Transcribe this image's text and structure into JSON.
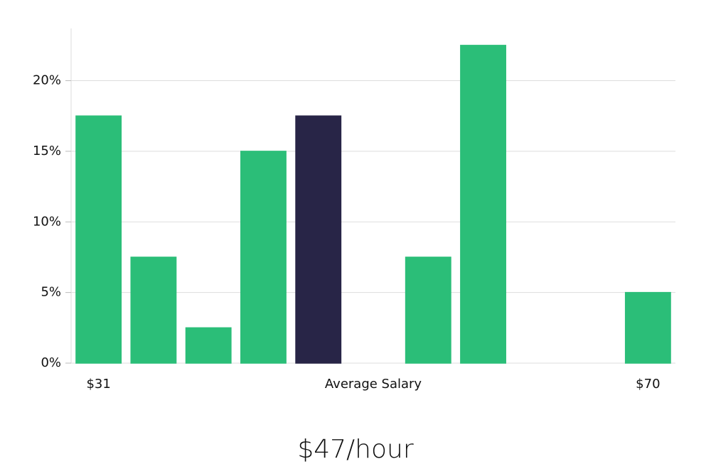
{
  "chart_data": {
    "type": "bar",
    "categories": [
      "$31",
      null,
      null,
      null,
      null,
      null,
      null,
      null,
      null,
      null,
      "$70"
    ],
    "values": [
      17.5,
      7.5,
      2.5,
      15,
      17.5,
      0,
      7.5,
      22.5,
      0,
      0,
      5
    ],
    "colors": [
      "#2bbe78",
      "#2bbe78",
      "#2bbe78",
      "#2bbe78",
      "#282547",
      "#2bbe78",
      "#2bbe78",
      "#2bbe78",
      "#2bbe78",
      "#2bbe78",
      "#2bbe78"
    ],
    "xlabel": "Average Salary",
    "annotation": "$47/hour",
    "ylim": [
      0,
      23.7
    ],
    "yticks": [
      {
        "value": 0,
        "label": "0%"
      },
      {
        "value": 5,
        "label": "5%"
      },
      {
        "value": 10,
        "label": "10%"
      },
      {
        "value": 15,
        "label": "15%"
      },
      {
        "value": 20,
        "label": "20%"
      }
    ],
    "grid": true
  }
}
